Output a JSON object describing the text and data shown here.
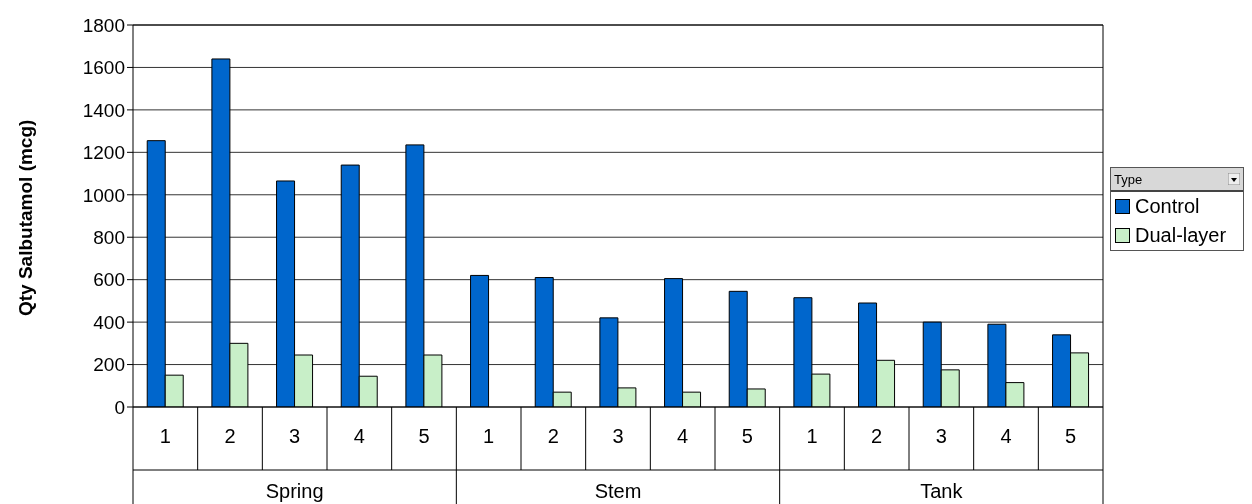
{
  "chart_data": {
    "type": "bar",
    "ylabel": "Qty Salbutamol (mcg)",
    "legend_title": "Type",
    "categories": [
      "1",
      "2",
      "3",
      "4",
      "5",
      "1",
      "2",
      "3",
      "4",
      "5",
      "1",
      "2",
      "3",
      "4",
      "5"
    ],
    "annotations": [
      "Spring",
      "Stem",
      "Tank"
    ],
    "series": [
      {
        "name": "Control",
        "color": "#0066cc",
        "values": [
          1255,
          1640,
          1065,
          1140,
          1235,
          620,
          610,
          420,
          605,
          545,
          515,
          490,
          400,
          390,
          340
        ]
      },
      {
        "name": "Dual-layer",
        "color": "#c8efc8",
        "values": [
          150,
          300,
          245,
          145,
          245,
          null,
          70,
          90,
          70,
          85,
          155,
          220,
          175,
          115,
          255
        ]
      }
    ],
    "ylim": [
      0,
      1800
    ],
    "yticks": [
      0,
      200,
      400,
      600,
      800,
      1000,
      1200,
      1400,
      1600,
      1800
    ],
    "grid": "y",
    "legend": "right"
  }
}
